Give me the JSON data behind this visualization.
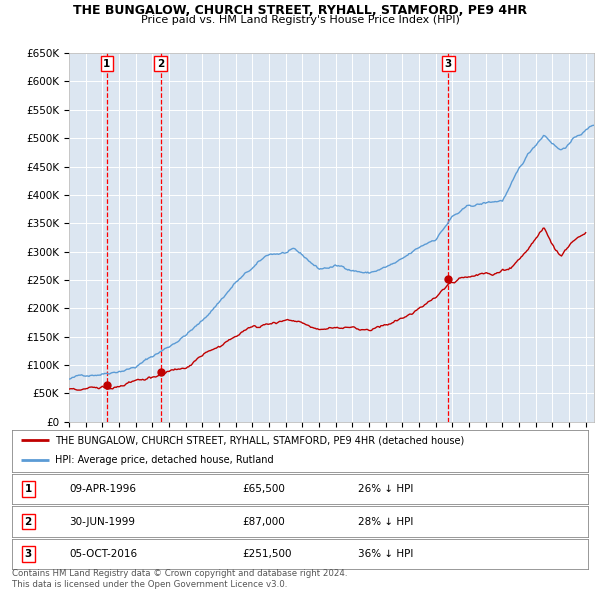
{
  "title": "THE BUNGALOW, CHURCH STREET, RYHALL, STAMFORD, PE9 4HR",
  "subtitle": "Price paid vs. HM Land Registry's House Price Index (HPI)",
  "ylim": [
    0,
    650000
  ],
  "yticks": [
    0,
    50000,
    100000,
    150000,
    200000,
    250000,
    300000,
    350000,
    400000,
    450000,
    500000,
    550000,
    600000,
    650000
  ],
  "ytick_labels": [
    "£0",
    "£50K",
    "£100K",
    "£150K",
    "£200K",
    "£250K",
    "£300K",
    "£350K",
    "£400K",
    "£450K",
    "£500K",
    "£550K",
    "£600K",
    "£650K"
  ],
  "xlim_start": 1994.0,
  "xlim_end": 2025.5,
  "sale_dates": [
    1996.27,
    1999.49,
    2016.76
  ],
  "sale_prices": [
    65500,
    87000,
    251500
  ],
  "sale_labels": [
    "1",
    "2",
    "3"
  ],
  "sale_date_strs": [
    "09-APR-1996",
    "30-JUN-1999",
    "05-OCT-2016"
  ],
  "sale_price_strs": [
    "£65,500",
    "£87,000",
    "£251,500"
  ],
  "sale_pct_strs": [
    "26% ↓ HPI",
    "28% ↓ HPI",
    "36% ↓ HPI"
  ],
  "hpi_line_color": "#5b9bd5",
  "property_line_color": "#c00000",
  "vline_color": "#ff0000",
  "plot_bg_color": "#dce6f1",
  "legend_line1": "THE BUNGALOW, CHURCH STREET, RYHALL, STAMFORD, PE9 4HR (detached house)",
  "legend_line2": "HPI: Average price, detached house, Rutland",
  "footer": "Contains HM Land Registry data © Crown copyright and database right 2024.\nThis data is licensed under the Open Government Licence v3.0."
}
